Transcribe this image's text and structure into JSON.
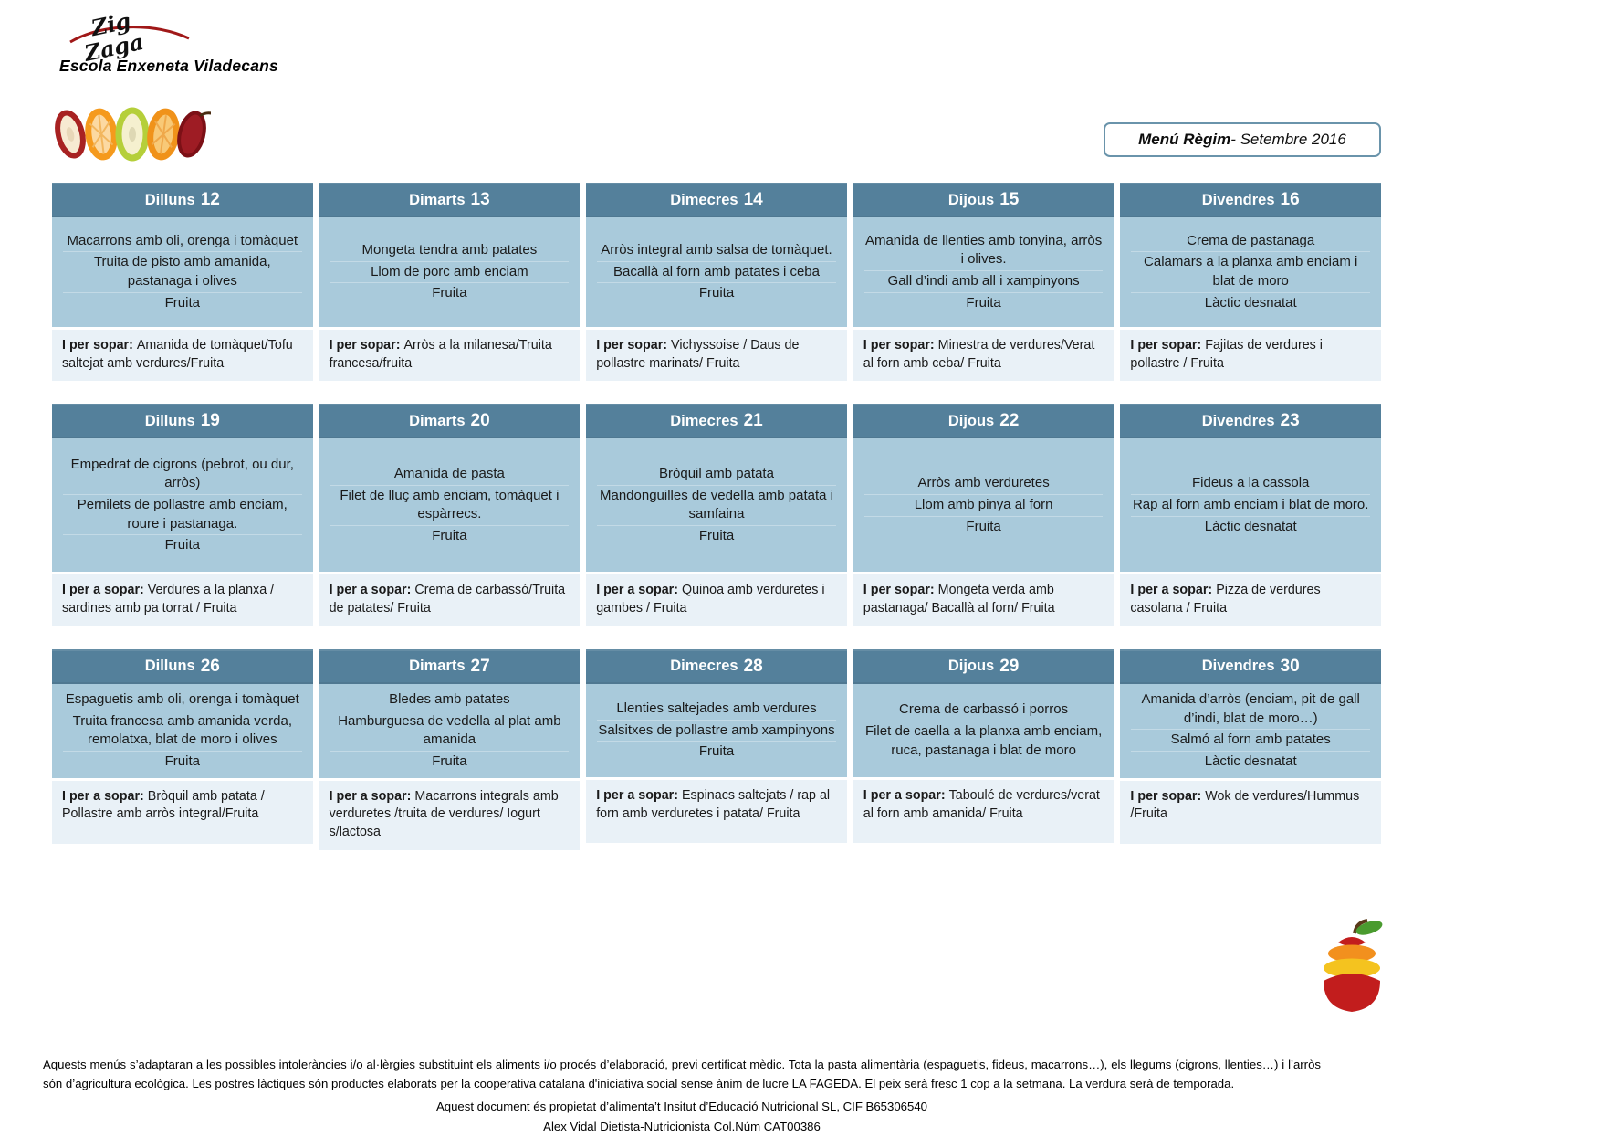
{
  "page_title": "Menú Règim - Setembre 2016",
  "brand": {
    "logo_word_top": "Zig",
    "logo_word_bottom": "Zaga",
    "school_name": "Escola Enxeneta Viladecans"
  },
  "menu_box": {
    "title_bold": "Menú Règim",
    "title_rest": " - Setembre 2016"
  },
  "colors": {
    "header_bg": "#54809B",
    "body_bg": "#A9CADB",
    "sopar_bg": "#E9F1F7",
    "box_border": "#6A94AB",
    "logo_red": "#A01818"
  },
  "icons": {
    "fruit_slices": "fruit-slices-image",
    "apple_stack": "apple-stack-logo"
  },
  "weeks": [
    {
      "days": [
        {
          "name": "Dilluns",
          "number": "12",
          "dishes": [
            "Macarrons amb oli, orenga i tomàquet",
            "Truita de pisto amb amanida, pastanaga i olives",
            "Fruita"
          ],
          "sopar_label": "I per sopar:",
          "sopar_text": "Amanida de tomàquet/Tofu saltejat amb verdures/Fruita"
        },
        {
          "name": "Dimarts",
          "number": "13",
          "dishes": [
            "Mongeta tendra amb patates",
            "Llom de porc amb enciam",
            "Fruita"
          ],
          "sopar_label": "I per sopar:",
          "sopar_text": "Arròs a la milanesa/Truita francesa/fruita"
        },
        {
          "name": "Dimecres",
          "number": "14",
          "dishes": [
            "Arròs integral amb salsa de tomàquet.",
            "Bacallà al forn amb patates i ceba",
            "Fruita"
          ],
          "sopar_label": "I per sopar:",
          "sopar_text": "Vichyssoise / Daus de pollastre marinats/ Fruita"
        },
        {
          "name": "Dijous",
          "number": "15",
          "dishes": [
            "Amanida de llenties amb tonyina, arròs i olives.",
            "Gall d’indi amb all i xampinyons",
            "Fruita"
          ],
          "sopar_label": "I per sopar:",
          "sopar_text": "Minestra de verdures/Verat al forn amb ceba/ Fruita"
        },
        {
          "name": "Divendres",
          "number": "16",
          "dishes": [
            "Crema de pastanaga",
            "Calamars a la planxa amb enciam i blat de moro",
            "Làctic desnatat"
          ],
          "sopar_label": "I per sopar:",
          "sopar_text": "Fajitas de verdures i pollastre / Fruita"
        }
      ]
    },
    {
      "days": [
        {
          "name": "Dilluns",
          "number": "19",
          "dishes": [
            "Empedrat de cigrons (pebrot, ou dur, arròs)",
            "Pernilets de pollastre amb enciam, roure i pastanaga.",
            "Fruita"
          ],
          "sopar_label": "I per a sopar:",
          "sopar_text": "Verdures a la planxa / sardines amb pa torrat / Fruita"
        },
        {
          "name": "Dimarts",
          "number": "20",
          "dishes": [
            "Amanida de pasta",
            "Filet de lluç amb enciam, tomàquet i espàrrecs.",
            "Fruita"
          ],
          "sopar_label": "I per a sopar:",
          "sopar_text": "Crema de carbassó/Truita de patates/ Fruita"
        },
        {
          "name": "Dimecres",
          "number": "21",
          "dishes": [
            "Bròquil amb patata",
            "Mandonguilles de vedella amb patata i samfaina",
            "Fruita"
          ],
          "sopar_label": "I per a sopar:",
          "sopar_text": "Quinoa amb verduretes i gambes / Fruita"
        },
        {
          "name": "Dijous",
          "number": "22",
          "dishes": [
            "Arròs amb verduretes",
            "Llom amb pinya al forn",
            "Fruita"
          ],
          "sopar_label": "I per sopar:",
          "sopar_text": "Mongeta verda amb pastanaga/ Bacallà al forn/ Fruita"
        },
        {
          "name": "Divendres",
          "number": "23",
          "dishes": [
            "Fideus a la cassola",
            "Rap al forn amb enciam i blat de moro.",
            "Làctic desnatat"
          ],
          "sopar_label": "I per a sopar:",
          "sopar_text": "Pizza de verdures casolana / Fruita"
        }
      ]
    },
    {
      "days": [
        {
          "name": "Dilluns",
          "number": "26",
          "dishes": [
            "Espaguetis amb oli, orenga i tomàquet",
            "Truita francesa amb amanida verda, remolatxa, blat de moro i olives",
            "Fruita"
          ],
          "sopar_label": "I per a sopar:",
          "sopar_text": "Bròquil amb patata / Pollastre amb arròs integral/Fruita"
        },
        {
          "name": "Dimarts",
          "number": "27",
          "dishes": [
            "Bledes amb patates",
            "Hamburguesa de vedella al plat amb amanida",
            "Fruita"
          ],
          "sopar_label": "I per a sopar:",
          "sopar_text": "Macarrons integrals amb verduretes /truita de verdures/ Iogurt s/lactosa"
        },
        {
          "name": "Dimecres",
          "number": "28",
          "dishes": [
            "Llenties saltejades amb verdures",
            "Salsitxes de pollastre amb xampinyons",
            "Fruita"
          ],
          "sopar_label": "I per a sopar:",
          "sopar_text": "Espinacs saltejats / rap al forn amb verduretes i patata/ Fruita"
        },
        {
          "name": "Dijous",
          "number": "29",
          "dishes": [
            "Crema de carbassó i porros",
            "Filet de caella a la planxa amb enciam, ruca, pastanaga i blat de moro"
          ],
          "sopar_label": "I per a sopar:",
          "sopar_text": "Taboulé de verdures/verat al forn amb amanida/ Fruita"
        },
        {
          "name": "Divendres",
          "number": "30",
          "dishes": [
            "Amanida d’arròs (enciam, pit de gall d’indi, blat de moro…)",
            "Salmó al forn amb patates",
            "Làctic desnatat"
          ],
          "sopar_label": "I per sopar:",
          "sopar_text": "Wok de verdures/Hummus /Fruita"
        }
      ]
    }
  ],
  "footer": {
    "paragraph": "Aquests menús s’adaptaran a les possibles intoleràncies i/o al·lèrgies substituint els aliments i/o procés d’elaboració, previ certificat mèdic. Tota la pasta alimentària (espaguetis, fideus, macarrons…), els llegums (cigrons, llenties…) i l’arròs són d’agricultura ecològica. Les postres làctiques són productes elaborats per la cooperativa catalana d'iniciativa social sense ànim de lucre LA FAGEDA. El peix serà fresc 1 cop a la setmana. La verdura serà de temporada.",
    "ownership_line": "Aquest document és propietat d’alimenta’t Insitut d’Educació Nutricional SL, CIF B65306540",
    "author_line": "Alex Vidal Dietista-Nutricionista Col.Núm CAT00386"
  }
}
